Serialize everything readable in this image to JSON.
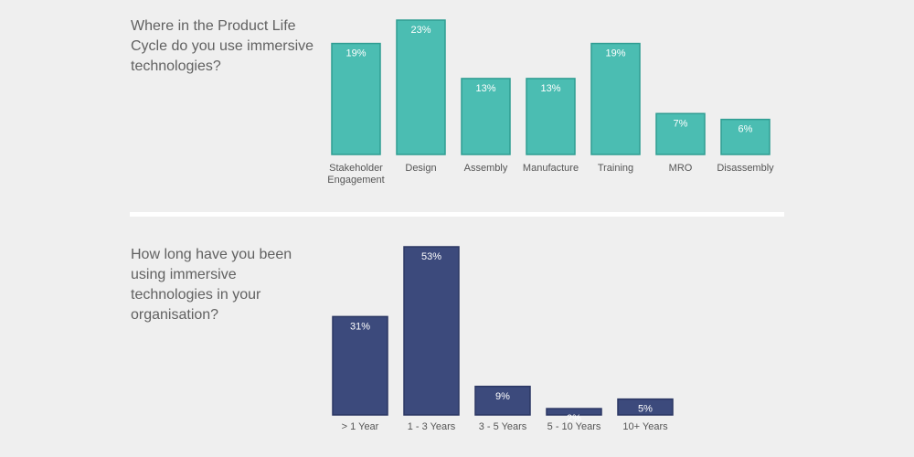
{
  "charts": [
    {
      "question": "Where in the Product Life Cycle do you use immersive technologies?",
      "chart_data": {
        "type": "bar",
        "categories": [
          [
            "Stakeholder",
            "Engagement"
          ],
          [
            "Design"
          ],
          [
            "Assembly"
          ],
          [
            "Manufacture"
          ],
          [
            "Training"
          ],
          [
            "MRO"
          ],
          [
            "Disassembly"
          ]
        ],
        "values": [
          19,
          23,
          13,
          13,
          19,
          7,
          6
        ],
        "value_labels": [
          "19%",
          "23%",
          "13%",
          "13%",
          "19%",
          "7%",
          "6%"
        ],
        "ylim": [
          0,
          23
        ],
        "bar_color": "#4bbdb2",
        "bar_border_color": "#2f9d92",
        "label_color": "#ffffff",
        "grid": false
      }
    },
    {
      "question": "How long have you been using immersive technologies in your organisation?",
      "chart_data": {
        "type": "bar",
        "categories": [
          [
            "> 1 Year"
          ],
          [
            "1 - 3 Years"
          ],
          [
            "3 - 5 Years"
          ],
          [
            "5 - 10 Years"
          ],
          [
            "10+ Years"
          ]
        ],
        "values": [
          31,
          53,
          9,
          2,
          5
        ],
        "value_labels": [
          "31%",
          "53%",
          "9%",
          "2%",
          "5%"
        ],
        "ylim": [
          0,
          53
        ],
        "bar_color": "#3c4a7c",
        "bar_border_color": "#2b3763",
        "label_color": "#ffffff",
        "grid": false
      }
    }
  ]
}
